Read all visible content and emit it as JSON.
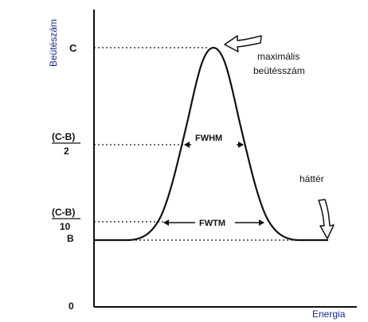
{
  "axes": {
    "y_title": "Beütészám",
    "x_title": "Energia"
  },
  "y_labels": {
    "c": "C",
    "half_num": "(C-B)",
    "half_den": "2",
    "tenth_num": "(C-B)",
    "tenth_den": "10",
    "b": "B",
    "zero": "0"
  },
  "widths": {
    "fwhm": "FWHM",
    "fwtm": "FWTM"
  },
  "annotations": {
    "peak_line1": "maximális",
    "peak_line2": "beütésszám",
    "background": "háttér"
  },
  "colors": {
    "axis_title": "#1a2a8c",
    "ink": "#111111"
  }
}
